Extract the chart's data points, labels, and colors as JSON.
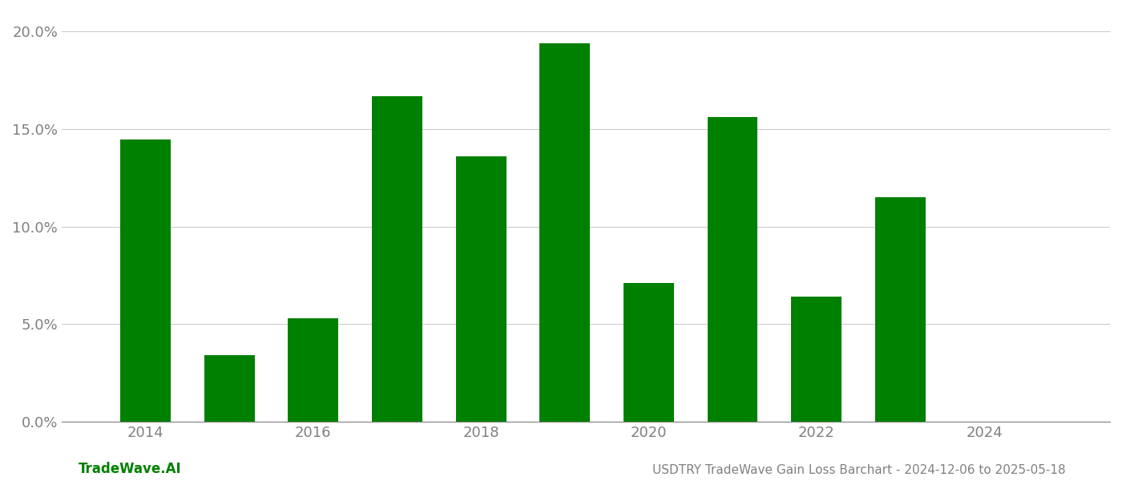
{
  "years": [
    2014,
    2015,
    2016,
    2017,
    2018,
    2019,
    2020,
    2021,
    2022,
    2023
  ],
  "values": [
    0.1445,
    0.034,
    0.053,
    0.167,
    0.136,
    0.194,
    0.071,
    0.156,
    0.064,
    0.115
  ],
  "bar_color": "#008000",
  "ylim": [
    0,
    0.21
  ],
  "yticks": [
    0.0,
    0.05,
    0.1,
    0.15,
    0.2
  ],
  "xtick_labels": [
    "2014",
    "2016",
    "2018",
    "2020",
    "2022",
    "2024"
  ],
  "xtick_positions": [
    2014,
    2016,
    2018,
    2020,
    2022,
    2024
  ],
  "footer_left": "TradeWave.AI",
  "footer_right": "USDTRY TradeWave Gain Loss Barchart - 2024-12-06 to 2025-05-18",
  "bar_width": 0.6,
  "background_color": "#ffffff",
  "grid_color": "#cccccc",
  "text_color": "#808080",
  "footer_color": "#808080",
  "footer_left_color": "#008000",
  "xlim_left": 2013.0,
  "xlim_right": 2025.5
}
